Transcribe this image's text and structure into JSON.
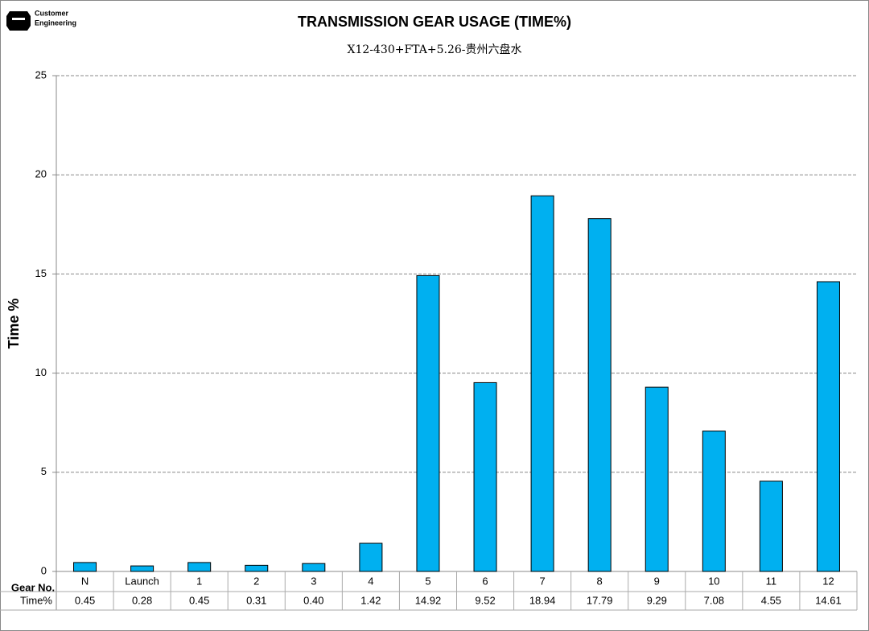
{
  "logo": {
    "line1": "Customer",
    "line2": "Engineering"
  },
  "chart_data": {
    "type": "bar",
    "title": "TRANSMISSION GEAR USAGE (TIME%)",
    "subtitle": "X12-430+FTA+5.26-贵州六盘水",
    "y_label": "Time %",
    "category_header": "Gear No.",
    "value_header": "Time%",
    "categories": [
      "N",
      "Launch",
      "1",
      "2",
      "3",
      "4",
      "5",
      "6",
      "7",
      "8",
      "9",
      "10",
      "11",
      "12"
    ],
    "values": [
      0.45,
      0.28,
      0.45,
      0.31,
      0.4,
      1.42,
      14.92,
      9.52,
      18.94,
      17.79,
      9.29,
      7.08,
      4.55,
      14.61
    ],
    "value_labels": [
      "0.45",
      "0.28",
      "0.45",
      "0.31",
      "0.40",
      "1.42",
      "14.92",
      "9.52",
      "18.94",
      "17.79",
      "9.29",
      "7.08",
      "4.55",
      "14.61"
    ],
    "color": "#00b0f0",
    "ylim": [
      0,
      25
    ],
    "yticks": [
      0,
      5,
      10,
      15,
      20,
      25
    ],
    "grid": true
  }
}
